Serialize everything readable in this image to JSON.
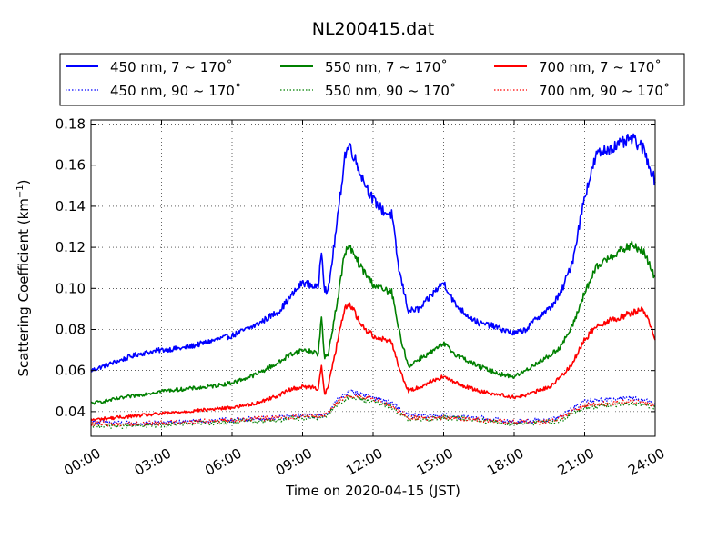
{
  "chart_data": {
    "type": "line",
    "title": "NL200415.dat",
    "xlabel": "Time on 2020-04-15 (JST)",
    "ylabel_main": "Scattering Coefficient (km",
    "ylabel_sup": "−1",
    "ylabel_end": ")",
    "xlim": [
      "00:00",
      "24:00"
    ],
    "ylim": [
      0.028,
      0.182
    ],
    "x_ticks": [
      "00:00",
      "03:00",
      "06:00",
      "09:00",
      "12:00",
      "15:00",
      "18:00",
      "21:00",
      "24:00"
    ],
    "y_ticks": [
      "0.04",
      "0.06",
      "0.08",
      "0.10",
      "0.12",
      "0.14",
      "0.16",
      "0.18"
    ],
    "grid": true,
    "legend_position": "top",
    "series": [
      {
        "name": "450 nm, 7 ~ 170˚",
        "color": "#0000ff",
        "style": "solid",
        "x": [
          "00:00",
          "01:00",
          "02:00",
          "03:00",
          "04:00",
          "05:00",
          "06:00",
          "07:00",
          "08:00",
          "08:30",
          "09:00",
          "09:30",
          "09:40",
          "09:48",
          "09:56",
          "10:05",
          "10:30",
          "10:48",
          "11:00",
          "11:30",
          "12:00",
          "12:30",
          "12:48",
          "13:05",
          "13:30",
          "14:00",
          "14:30",
          "15:00",
          "15:30",
          "16:00",
          "16:30",
          "17:00",
          "17:30",
          "18:00",
          "18:30",
          "19:00",
          "19:30",
          "20:00",
          "20:30",
          "21:00",
          "21:30",
          "22:00",
          "22:30",
          "23:00",
          "23:30",
          "24:00"
        ],
        "y": [
          0.06,
          0.064,
          0.068,
          0.07,
          0.071,
          0.074,
          0.077,
          0.082,
          0.089,
          0.096,
          0.103,
          0.101,
          0.1,
          0.12,
          0.1,
          0.098,
          0.135,
          0.165,
          0.17,
          0.155,
          0.143,
          0.137,
          0.136,
          0.11,
          0.089,
          0.09,
          0.097,
          0.103,
          0.092,
          0.087,
          0.083,
          0.082,
          0.08,
          0.078,
          0.08,
          0.086,
          0.09,
          0.098,
          0.114,
          0.145,
          0.165,
          0.168,
          0.17,
          0.173,
          0.168,
          0.152
        ]
      },
      {
        "name": "450 nm, 90 ~ 170˚",
        "color": "#0000ff",
        "style": "dotted",
        "x": [
          "00:00",
          "02:00",
          "04:00",
          "06:00",
          "08:00",
          "09:00",
          "09:56",
          "10:30",
          "11:00",
          "12:00",
          "12:48",
          "13:30",
          "15:00",
          "16:30",
          "18:00",
          "19:30",
          "20:00",
          "21:00",
          "22:00",
          "23:00",
          "24:00"
        ],
        "y": [
          0.035,
          0.034,
          0.035,
          0.036,
          0.037,
          0.038,
          0.038,
          0.046,
          0.05,
          0.047,
          0.044,
          0.038,
          0.038,
          0.037,
          0.035,
          0.036,
          0.038,
          0.045,
          0.046,
          0.047,
          0.044
        ]
      },
      {
        "name": "550 nm, 7 ~ 170˚",
        "color": "#008000",
        "style": "solid",
        "x": [
          "00:00",
          "01:00",
          "02:00",
          "03:00",
          "04:00",
          "05:00",
          "06:00",
          "07:00",
          "08:00",
          "08:30",
          "09:00",
          "09:30",
          "09:40",
          "09:48",
          "09:56",
          "10:05",
          "10:30",
          "10:48",
          "11:00",
          "11:30",
          "12:00",
          "12:30",
          "12:48",
          "13:05",
          "13:30",
          "14:00",
          "14:30",
          "15:00",
          "15:30",
          "16:00",
          "16:30",
          "17:00",
          "17:30",
          "18:00",
          "18:30",
          "19:00",
          "19:30",
          "20:00",
          "20:30",
          "21:00",
          "21:30",
          "22:00",
          "22:30",
          "23:00",
          "23:30",
          "24:00"
        ],
        "y": [
          0.044,
          0.046,
          0.048,
          0.05,
          0.051,
          0.052,
          0.054,
          0.058,
          0.064,
          0.068,
          0.07,
          0.069,
          0.068,
          0.086,
          0.066,
          0.068,
          0.095,
          0.118,
          0.12,
          0.11,
          0.102,
          0.099,
          0.098,
          0.08,
          0.062,
          0.066,
          0.069,
          0.073,
          0.068,
          0.065,
          0.062,
          0.06,
          0.058,
          0.057,
          0.06,
          0.064,
          0.067,
          0.072,
          0.082,
          0.098,
          0.11,
          0.115,
          0.118,
          0.121,
          0.118,
          0.105
        ]
      },
      {
        "name": "550 nm, 90 ~ 170˚",
        "color": "#008000",
        "style": "dotted",
        "x": [
          "00:00",
          "02:00",
          "04:00",
          "06:00",
          "08:00",
          "09:00",
          "09:56",
          "10:30",
          "11:00",
          "12:00",
          "12:48",
          "13:30",
          "15:00",
          "16:30",
          "18:00",
          "19:30",
          "20:00",
          "21:00",
          "22:00",
          "23:00",
          "24:00"
        ],
        "y": [
          0.033,
          0.033,
          0.034,
          0.035,
          0.036,
          0.037,
          0.037,
          0.044,
          0.047,
          0.045,
          0.042,
          0.036,
          0.037,
          0.036,
          0.034,
          0.035,
          0.036,
          0.042,
          0.043,
          0.044,
          0.042
        ]
      },
      {
        "name": "700 nm, 7 ~ 170˚",
        "color": "#ff0000",
        "style": "solid",
        "x": [
          "00:00",
          "01:00",
          "02:00",
          "03:00",
          "04:00",
          "05:00",
          "06:00",
          "07:00",
          "08:00",
          "08:30",
          "09:00",
          "09:30",
          "09:40",
          "09:48",
          "09:56",
          "10:05",
          "10:30",
          "10:48",
          "11:00",
          "11:30",
          "12:00",
          "12:30",
          "12:48",
          "13:05",
          "13:30",
          "14:00",
          "14:30",
          "15:00",
          "15:30",
          "16:00",
          "16:30",
          "17:00",
          "17:30",
          "18:00",
          "18:30",
          "19:00",
          "19:30",
          "20:00",
          "20:30",
          "21:00",
          "21:30",
          "22:00",
          "22:30",
          "23:00",
          "23:30",
          "24:00"
        ],
        "y": [
          0.036,
          0.037,
          0.038,
          0.039,
          0.04,
          0.041,
          0.042,
          0.044,
          0.048,
          0.051,
          0.052,
          0.052,
          0.051,
          0.063,
          0.048,
          0.052,
          0.075,
          0.09,
          0.093,
          0.082,
          0.077,
          0.075,
          0.074,
          0.062,
          0.05,
          0.052,
          0.055,
          0.057,
          0.054,
          0.052,
          0.05,
          0.049,
          0.048,
          0.047,
          0.048,
          0.05,
          0.052,
          0.057,
          0.064,
          0.075,
          0.082,
          0.084,
          0.086,
          0.088,
          0.09,
          0.076
        ]
      },
      {
        "name": "700 nm, 90 ~ 170˚",
        "color": "#ff0000",
        "style": "dotted",
        "x": [
          "00:00",
          "02:00",
          "04:00",
          "06:00",
          "08:00",
          "09:00",
          "09:56",
          "10:30",
          "11:00",
          "12:00",
          "12:48",
          "13:30",
          "15:00",
          "16:30",
          "18:00",
          "19:30",
          "20:00",
          "21:00",
          "22:00",
          "23:00",
          "24:00"
        ],
        "y": [
          0.034,
          0.034,
          0.035,
          0.036,
          0.037,
          0.038,
          0.038,
          0.045,
          0.048,
          0.046,
          0.043,
          0.037,
          0.037,
          0.036,
          0.035,
          0.035,
          0.037,
          0.043,
          0.044,
          0.045,
          0.043
        ]
      }
    ]
  }
}
